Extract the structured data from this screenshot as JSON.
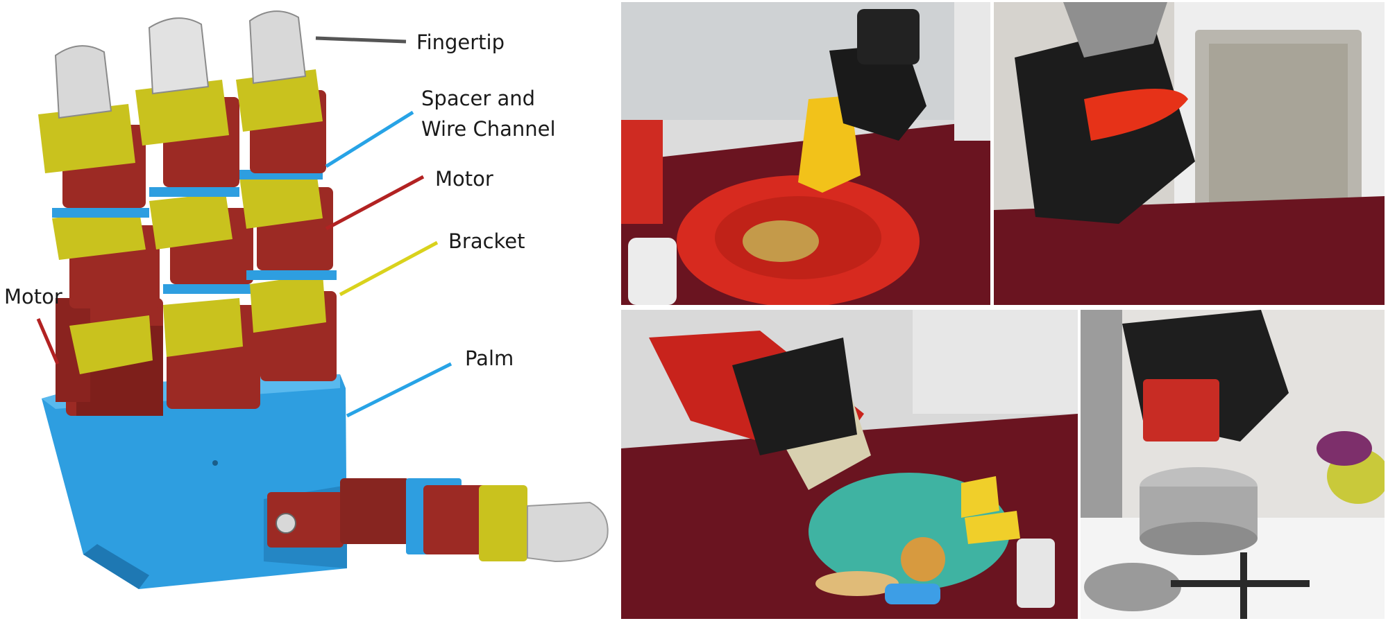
{
  "labels": {
    "fingertip": "Fingertip",
    "spacer_line1": "Spacer and",
    "spacer_line2": "Wire Channel",
    "motor_right": "Motor",
    "bracket": "Bracket",
    "motor_left": "Motor",
    "palm": "Palm"
  },
  "colors": {
    "palm": "#2e9ee0",
    "motor": "#9c2a24",
    "bracket": "#c9c21e",
    "fingertip": "#d8d8d8",
    "spacer_line": "#27a3e6",
    "motor_line": "#b22222",
    "bracket_line": "#d9d21c",
    "fingertip_line": "#555555",
    "tablecloth": "#6a1420"
  },
  "photos": [
    {
      "name": "photo-mustard-pouring",
      "objects": [
        "mustard-bottle",
        "red-plate",
        "toast",
        "salt-shaker",
        "red-basket"
      ]
    },
    {
      "name": "photo-microwave-pepper",
      "objects": [
        "microwave",
        "red-pepper"
      ]
    },
    {
      "name": "photo-can-pouring",
      "objects": [
        "red-can",
        "teal-plate",
        "cheese",
        "cracker",
        "salt-shaker",
        "knife"
      ]
    },
    {
      "name": "photo-stove-pot",
      "objects": [
        "can",
        "steel-pot",
        "stove",
        "vegetables"
      ]
    }
  ]
}
